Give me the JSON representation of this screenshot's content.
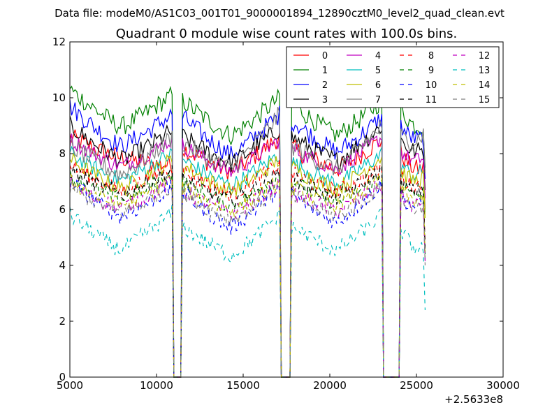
{
  "chart_data": {
    "type": "line",
    "suptitle": "Data file: modeM0/AS1C03_001T01_9000001894_12890cztM0_level2_quad_clean.evt",
    "title": "Quadrant 0 module wise count rates with 100.0s bins.",
    "xlabel": "",
    "ylabel": "",
    "x_offset_label": "+2.5633e8",
    "xlim": [
      5000,
      30000
    ],
    "ylim": [
      0,
      12
    ],
    "xticks": [
      5000,
      10000,
      15000,
      20000,
      25000,
      30000
    ],
    "yticks": [
      0,
      2,
      4,
      6,
      8,
      10,
      12
    ],
    "grid": false,
    "legend_position": "top-right",
    "x_start": 5000,
    "x_end": 25500,
    "bin_width": 100,
    "segments": [
      [
        5000,
        10900
      ],
      [
        11500,
        17100
      ],
      [
        17800,
        23000
      ],
      [
        24100,
        25500
      ]
    ],
    "gap_zeros": [
      [
        11000,
        11400
      ],
      [
        17200,
        17700
      ],
      [
        23100,
        24000
      ]
    ],
    "series": [
      {
        "name": "0",
        "color": "#ff0000",
        "dash": "solid",
        "segment_means": [
          [
            8.6,
            7.6
          ],
          [
            8.2,
            7.6,
            8.6
          ],
          [
            8.2,
            7.7,
            8.5
          ],
          [
            8.0,
            7.5
          ]
        ],
        "noise": 0.35
      },
      {
        "name": "1",
        "color": "#008000",
        "dash": "solid",
        "segment_means": [
          [
            10.3,
            9.2,
            10.1
          ],
          [
            9.9,
            8.9,
            10.0
          ],
          [
            9.8,
            8.9,
            9.9
          ],
          [
            9.6,
            9.0
          ]
        ],
        "noise": 0.35
      },
      {
        "name": "2",
        "color": "#0000ff",
        "dash": "solid",
        "segment_means": [
          [
            9.7,
            8.5,
            9.4
          ],
          [
            9.3,
            8.2,
            9.4
          ],
          [
            9.2,
            8.3,
            9.3
          ],
          [
            9.0,
            8.6
          ]
        ],
        "noise": 0.35
      },
      {
        "name": "3",
        "color": "#000000",
        "dash": "solid",
        "segment_means": [
          [
            9.0,
            8.0,
            8.8
          ],
          [
            8.6,
            7.9,
            8.9
          ],
          [
            8.6,
            8.0,
            9.0
          ],
          [
            8.5,
            8.2
          ]
        ],
        "noise": 0.35
      },
      {
        "name": "4",
        "color": "#c000c0",
        "dash": "solid",
        "segment_means": [
          [
            8.5,
            7.8,
            8.5
          ],
          [
            8.3,
            7.6,
            8.5
          ],
          [
            8.2,
            7.7,
            8.6
          ],
          [
            8.1,
            7.9
          ]
        ],
        "noise": 0.3
      },
      {
        "name": "5",
        "color": "#00bfbf",
        "dash": "solid",
        "segment_means": [
          [
            8.0,
            7.3,
            8.0
          ],
          [
            7.8,
            7.1,
            8.0
          ],
          [
            7.7,
            7.2,
            8.0
          ],
          [
            7.6,
            7.4
          ]
        ],
        "noise": 0.3
      },
      {
        "name": "6",
        "color": "#bfbf00",
        "dash": "solid",
        "segment_means": [
          [
            7.8,
            7.0,
            7.8
          ],
          [
            7.6,
            6.9,
            7.8
          ],
          [
            7.5,
            7.0,
            7.9
          ],
          [
            7.4,
            7.2
          ]
        ],
        "noise": 0.3
      },
      {
        "name": "7",
        "color": "#808080",
        "dash": "solid",
        "segment_means": [
          [
            8.3,
            7.5,
            8.6
          ],
          [
            8.4,
            7.7,
            9.4
          ],
          [
            8.3,
            7.7,
            9.0
          ],
          [
            8.6,
            8.8
          ]
        ],
        "noise": 0.35
      },
      {
        "name": "8",
        "color": "#ff0000",
        "dash": "dashed",
        "segment_means": [
          [
            7.6,
            6.9,
            7.6
          ],
          [
            7.4,
            6.8,
            7.6
          ],
          [
            7.3,
            6.9,
            7.5
          ],
          [
            7.2,
            7.0
          ]
        ],
        "noise": 0.3
      },
      {
        "name": "9",
        "color": "#008000",
        "dash": "dashed",
        "segment_means": [
          [
            7.2,
            6.6,
            7.3
          ],
          [
            7.0,
            6.4,
            7.2
          ],
          [
            7.0,
            6.5,
            7.2
          ],
          [
            6.9,
            6.6
          ]
        ],
        "noise": 0.3
      },
      {
        "name": "10",
        "color": "#0000ff",
        "dash": "dashed",
        "segment_means": [
          [
            7.0,
            6.0,
            6.8
          ],
          [
            6.6,
            5.6,
            6.8
          ],
          [
            6.5,
            5.8,
            6.9
          ],
          [
            6.5,
            6.3
          ]
        ],
        "noise": 0.3
      },
      {
        "name": "11",
        "color": "#000000",
        "dash": "dashed",
        "segment_means": [
          [
            7.4,
            6.8,
            7.4
          ],
          [
            7.1,
            6.6,
            7.3
          ],
          [
            7.1,
            6.7,
            7.4
          ],
          [
            7.0,
            6.8
          ]
        ],
        "noise": 0.3
      },
      {
        "name": "12",
        "color": "#c000c0",
        "dash": "dashed",
        "segment_means": [
          [
            6.9,
            6.3,
            7.0
          ],
          [
            6.7,
            6.1,
            6.9
          ],
          [
            6.6,
            6.2,
            6.9
          ],
          [
            6.5,
            6.3
          ]
        ],
        "noise": 0.3
      },
      {
        "name": "13",
        "color": "#00bfbf",
        "dash": "dashed",
        "segment_means": [
          [
            5.8,
            4.8,
            5.9
          ],
          [
            5.4,
            4.6,
            5.8
          ],
          [
            5.4,
            4.8,
            5.8
          ],
          [
            5.3,
            4.6
          ]
        ],
        "noise": 0.3
      },
      {
        "name": "14",
        "color": "#bfbf00",
        "dash": "dashed",
        "segment_means": [
          [
            7.0,
            6.4,
            7.1
          ],
          [
            6.8,
            6.2,
            7.0
          ],
          [
            6.8,
            6.4,
            7.1
          ],
          [
            6.7,
            6.5
          ]
        ],
        "noise": 0.3
      },
      {
        "name": "15",
        "color": "#808080",
        "dash": "dashed",
        "segment_means": [
          [
            6.8,
            6.1,
            6.9
          ],
          [
            6.6,
            5.9,
            6.8
          ],
          [
            6.5,
            6.0,
            6.8
          ],
          [
            6.4,
            6.2
          ]
        ],
        "noise": 0.3
      }
    ]
  }
}
